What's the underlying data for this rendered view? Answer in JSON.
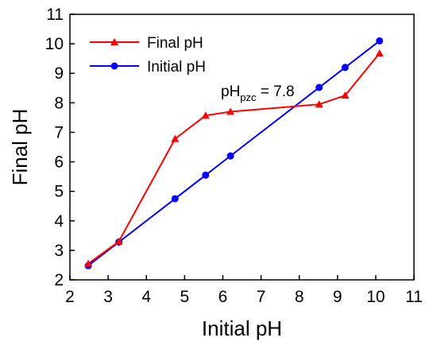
{
  "chart_data": {
    "type": "line",
    "xlabel": "Initial pH",
    "ylabel": "Final pH",
    "xlim": [
      2,
      11
    ],
    "ylim": [
      2,
      11
    ],
    "x_ticks": [
      2,
      3,
      4,
      5,
      6,
      7,
      8,
      9,
      10,
      11
    ],
    "y_ticks": [
      2,
      3,
      4,
      5,
      6,
      7,
      8,
      9,
      10,
      11
    ],
    "grid": false,
    "legend_position": "top-left",
    "series": [
      {
        "name": "Final pH",
        "color": "#ff0000",
        "marker": "triangle",
        "x": [
          2.48,
          3.28,
          4.75,
          5.55,
          6.2,
          8.52,
          9.2,
          10.1
        ],
        "y": [
          2.55,
          3.3,
          6.78,
          7.57,
          7.7,
          7.95,
          8.25,
          9.68
        ]
      },
      {
        "name": "Initial pH",
        "color": "#0000ff",
        "marker": "circle",
        "x": [
          2.48,
          3.28,
          4.75,
          5.55,
          6.2,
          8.52,
          9.2,
          10.1
        ],
        "y": [
          2.48,
          3.28,
          4.75,
          5.55,
          6.2,
          8.52,
          9.2,
          10.1
        ]
      }
    ],
    "annotation": {
      "base": "pH",
      "subscript": "pzc",
      "suffix": " = 7.8"
    }
  }
}
